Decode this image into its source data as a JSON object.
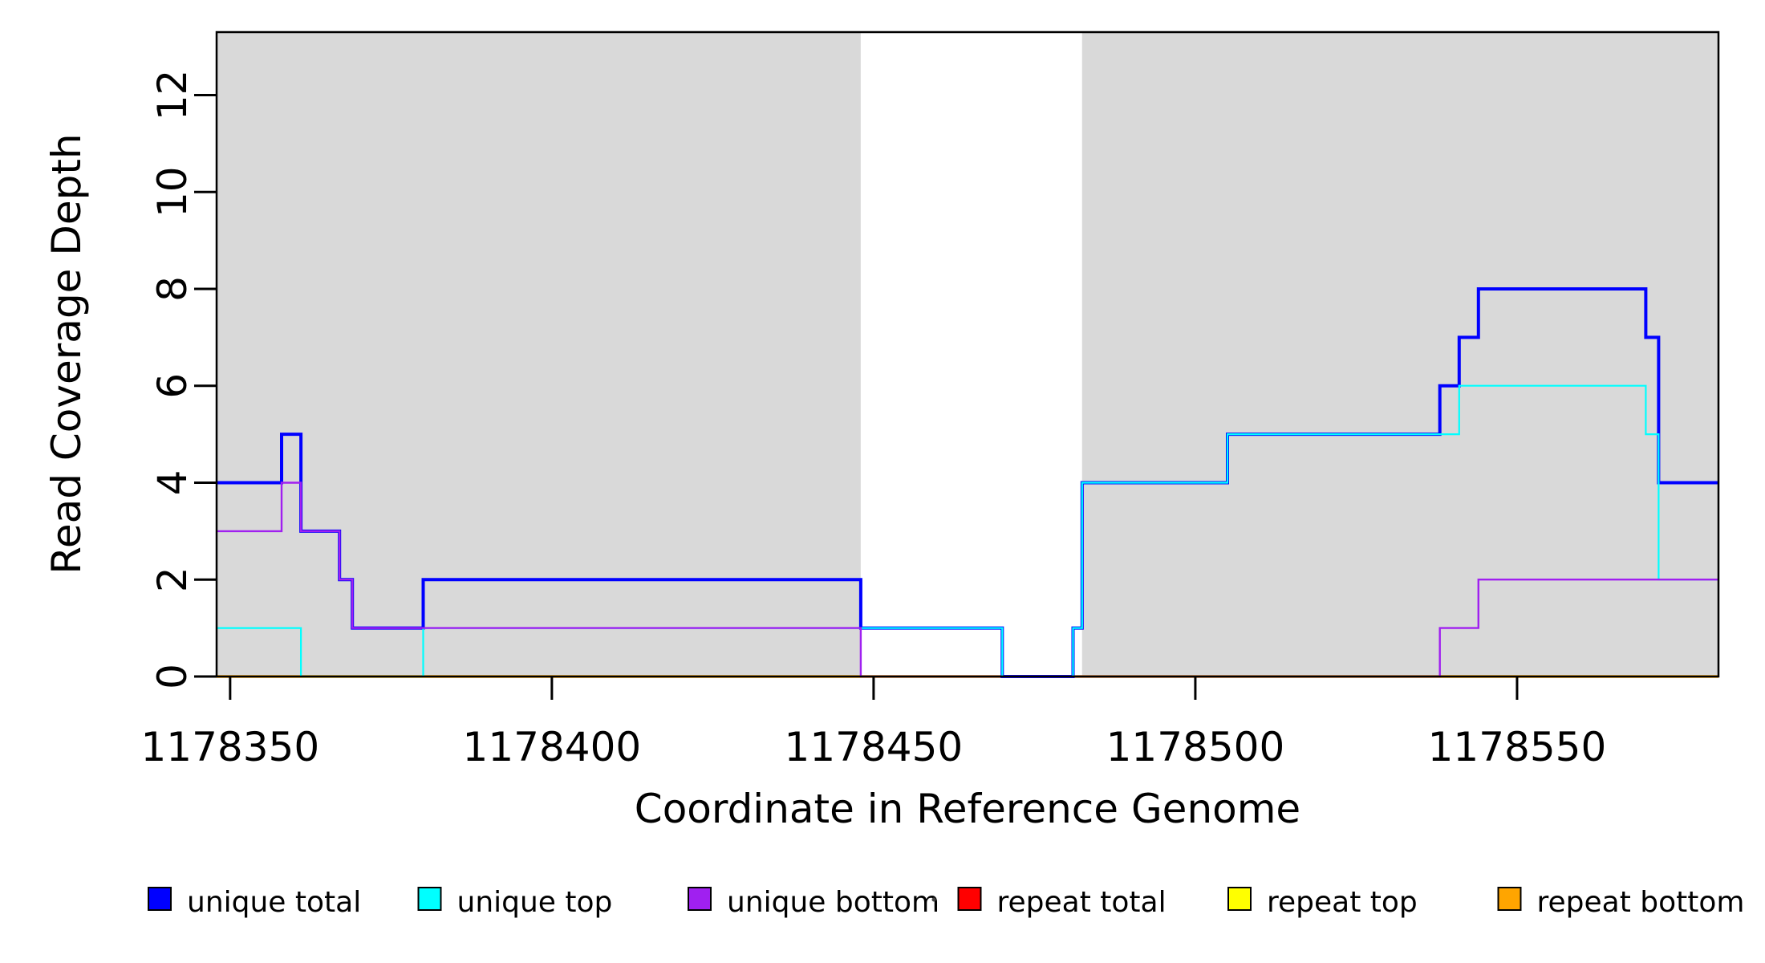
{
  "chart_data": {
    "type": "line",
    "subtype": "step-post",
    "title": "",
    "xlabel": "Coordinate in Reference Genome",
    "ylabel": "Read Coverage Depth",
    "xlim": [
      1178347.9,
      1178581.3
    ],
    "ylim": [
      0,
      13.3
    ],
    "x_ticks": [
      1178350,
      1178400,
      1178450,
      1178500,
      1178550
    ],
    "y_ticks": [
      0,
      2,
      4,
      6,
      8,
      10,
      12
    ],
    "grid": false,
    "plot_bg": "#ffffff",
    "shaded_regions": [
      {
        "name": "gray-block-left",
        "from": 1178347.9,
        "to": 1178448.0,
        "color": "#D9D9D9"
      },
      {
        "name": "gray-block-right",
        "from": 1178482.4,
        "to": 1178581.3,
        "color": "#D9D9D9"
      }
    ],
    "series": [
      {
        "name": "repeat total",
        "color": "#FF0000",
        "line_width": 2.5,
        "points": [
          [
            1178347.9,
            0
          ]
        ]
      },
      {
        "name": "repeat top",
        "color": "#FFFF00",
        "line_width": 2.5,
        "points": [
          [
            1178347.9,
            0
          ]
        ]
      },
      {
        "name": "repeat bottom",
        "color": "#FFA500",
        "line_width": 3.5,
        "points": [
          [
            1178347.9,
            0
          ]
        ]
      },
      {
        "name": "unique total",
        "color": "#0000FF",
        "line_width": 4,
        "points": [
          [
            1178347.9,
            4
          ],
          [
            1178358,
            5
          ],
          [
            1178361,
            3
          ],
          [
            1178367,
            2
          ],
          [
            1178369,
            1
          ],
          [
            1178380,
            2
          ],
          [
            1178448,
            1
          ],
          [
            1178470,
            0
          ],
          [
            1178481,
            1
          ],
          [
            1178482.4,
            4
          ],
          [
            1178505,
            5
          ],
          [
            1178538,
            6
          ],
          [
            1178541,
            7
          ],
          [
            1178544,
            8
          ],
          [
            1178570,
            7
          ],
          [
            1178572,
            4
          ]
        ]
      },
      {
        "name": "unique top",
        "color": "#00FFFF",
        "line_width": 2.2,
        "points": [
          [
            1178347.9,
            1
          ],
          [
            1178361,
            0
          ],
          [
            1178380,
            1
          ],
          [
            1178470,
            0
          ],
          [
            1178481,
            1
          ],
          [
            1178482.4,
            4
          ],
          [
            1178505,
            5
          ],
          [
            1178541,
            6
          ],
          [
            1178570,
            5
          ],
          [
            1178572,
            2
          ]
        ]
      },
      {
        "name": "unique bottom",
        "color": "#A020F0",
        "line_width": 2.4,
        "points": [
          [
            1178347.9,
            3
          ],
          [
            1178358,
            4
          ],
          [
            1178361,
            3
          ],
          [
            1178367,
            2
          ],
          [
            1178369,
            1
          ],
          [
            1178448,
            0
          ],
          [
            1178538,
            1
          ],
          [
            1178544,
            2
          ]
        ]
      }
    ],
    "legend": {
      "position": "bottom",
      "items": [
        {
          "label": "unique total",
          "color": "#0000FF"
        },
        {
          "label": "unique top",
          "color": "#00FFFF"
        },
        {
          "label": "unique bottom",
          "color": "#A020F0"
        },
        {
          "label": "repeat total",
          "color": "#FF0000"
        },
        {
          "label": "repeat top",
          "color": "#FFFF00"
        },
        {
          "label": "repeat bottom",
          "color": "#FFA500"
        }
      ]
    }
  }
}
